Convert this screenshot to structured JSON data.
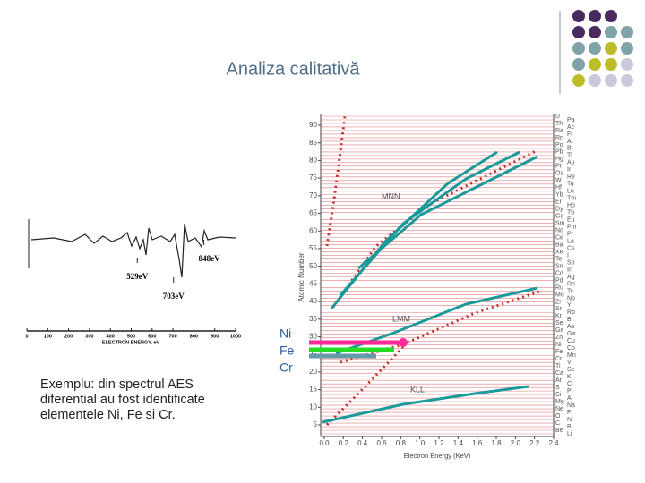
{
  "title": "Analiza  calitativă",
  "caption": "Exemplu: din spectrul AES diferential au fost identificate elementele Ni, Fe si Cr.",
  "element_labels": [
    "Ni",
    "Fe",
    "Cr"
  ],
  "spectrum": {
    "xlabel": "ELECTRON ENERGY, eV",
    "xlim": [
      0,
      1000
    ],
    "xticks": [
      0,
      100,
      200,
      300,
      400,
      500,
      600,
      700,
      800,
      900,
      1000
    ],
    "annotations": [
      {
        "label": "529eV",
        "x": 529
      },
      {
        "label": "703eV",
        "x": 703
      },
      {
        "label": "848eV",
        "x": 848
      }
    ]
  },
  "auger_chart": {
    "ylabel": "Atomic Number",
    "xlabel": "Electron Energy (KeV)",
    "ylim": [
      5,
      90
    ],
    "yticks": [
      5,
      10,
      15,
      20,
      25,
      30,
      35,
      40,
      45,
      50,
      55,
      60,
      65,
      70,
      75,
      80,
      85,
      90
    ],
    "xlim": [
      0,
      2.4
    ],
    "xticks": [
      "0.0",
      "0.2",
      "0.4",
      "0.6",
      "0.8",
      "1.0",
      "1.2",
      "1.4",
      "1.6",
      "1.8",
      "2.0",
      "2.2",
      "2.4"
    ],
    "series_labels": [
      "MNN",
      "LMM",
      "KLL"
    ],
    "elements": [
      "U",
      "Pa",
      "Th",
      "Ac",
      "Ra",
      "Fr",
      "Rn",
      "At",
      "Po",
      "Bi",
      "Pb",
      "Tl",
      "Hg",
      "Au",
      "Pt",
      "Ir",
      "Os",
      "Re",
      "W",
      "Ta",
      "Hf",
      "Lu",
      "Yb",
      "Tm",
      "Er",
      "Ho",
      "Dy",
      "Tb",
      "Gd",
      "Eu",
      "Sm",
      "Pm",
      "Nd",
      "Pr",
      "Ce",
      "La",
      "Ba",
      "Cs",
      "Xe",
      "I",
      "Te",
      "Sb",
      "Sn",
      "In",
      "Cd",
      "Ag",
      "Pd",
      "Rh",
      "Ru",
      "Tc",
      "Mo",
      "Nb",
      "Zr",
      "Y",
      "Sr",
      "Rb",
      "Kr",
      "Br",
      "Se",
      "As",
      "Ge",
      "Ga",
      "Zn",
      "Cu",
      "Ni",
      "Co",
      "Fe",
      "Mn",
      "Cr",
      "V",
      "Ti",
      "Sc",
      "Ca",
      "K",
      "Ar",
      "Cl",
      "S",
      "P",
      "Si",
      "Al",
      "Mg",
      "Na",
      "Ne",
      "F",
      "O",
      "N",
      "C",
      "B",
      "Be",
      "Li"
    ]
  }
}
